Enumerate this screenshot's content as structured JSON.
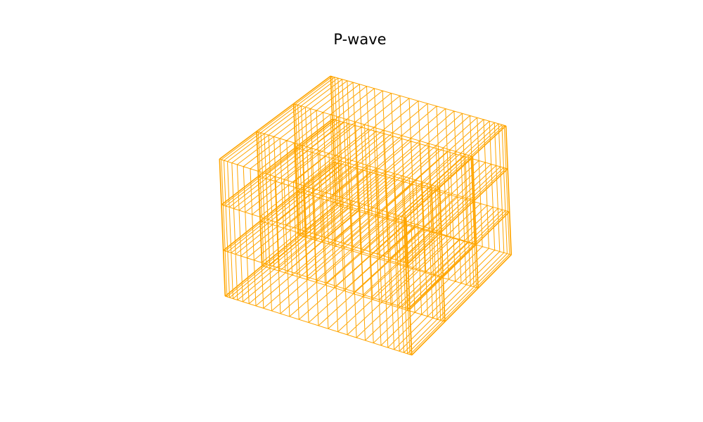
{
  "title": "P-wave"
}
